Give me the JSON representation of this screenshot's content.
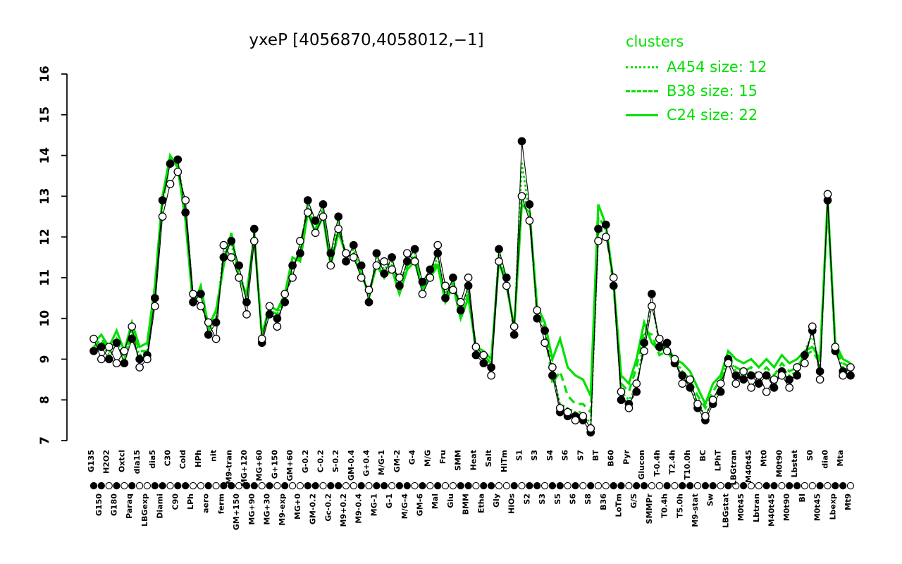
{
  "title": "yxeP [4056870,4058012,−1]",
  "colors": {
    "cluster_green": "#00e000",
    "point_fill": "#000000",
    "point_open": "#ffffff"
  },
  "legend": {
    "title": "clusters",
    "entries": [
      {
        "label": "A454 size: 12",
        "style": "dotted"
      },
      {
        "label": "B38 size: 15",
        "style": "dashed"
      },
      {
        "label": "C24 size: 22",
        "style": "solid"
      }
    ]
  },
  "chart_data": {
    "type": "line",
    "title": "yxeP [4056870,4058012,−1]",
    "xlabel": "",
    "ylabel": "",
    "ylim": [
      7,
      16
    ],
    "yticks": [
      7,
      8,
      9,
      10,
      11,
      12,
      13,
      14,
      15,
      16
    ],
    "grid": false,
    "legend_position": "top-right",
    "categories": [
      "G135",
      "G150",
      "H2O2",
      "G180",
      "Oxtcl",
      "Paraq",
      "dia15",
      "LBGexp",
      "dia5",
      "Diami",
      "C30",
      "C90",
      "Cold",
      "LPh",
      "HPh",
      "aero",
      "nit",
      "ferm",
      "M9-tran",
      "GM+150",
      "MG+120",
      "MG+90",
      "MG+60",
      "MG+30",
      "G+150",
      "M9-exp",
      "GM+60",
      "MG+0",
      "G-0.2",
      "GM-0.2",
      "C-0.2",
      "Gc-0.2",
      "S-0.2",
      "M9+0.2",
      "GM-0.4",
      "M9-0.4",
      "G+0.4",
      "MG-1",
      "M/G-1",
      "G-1",
      "GM-2",
      "M/G-4",
      "G-4",
      "GM-6",
      "M/G",
      "Mal",
      "Fru",
      "Glu",
      "SMM",
      "BMM",
      "Heat",
      "Etha",
      "Salt",
      "Gly",
      "HiTm",
      "HiOs",
      "S1",
      "S2",
      "S3",
      "S3",
      "S4",
      "S5",
      "S6",
      "S6",
      "S7",
      "S8",
      "BT",
      "B36",
      "B60",
      "LoTm",
      "Pyr",
      "G/S",
      "Glucon",
      "SMMPr",
      "T-0.4h",
      "T0.4h",
      "T2.4h",
      "T5.0h",
      "T10.0h",
      "M9-stat",
      "BC",
      "Sw",
      "LPhT",
      "LBGstat",
      "LBGtran",
      "M0t45",
      "M40t45",
      "Lbtran",
      "Mt0",
      "M40t45",
      "M0t90",
      "M0t90",
      "Lbstat",
      "BI",
      "S0",
      "M0t45",
      "dia0",
      "Lbexp",
      "Mta",
      "Mt9"
    ],
    "strip_filled": [
      1,
      1,
      0,
      1,
      0,
      1,
      0,
      0,
      1,
      1,
      0,
      1,
      1,
      0,
      0,
      1,
      0,
      1,
      1,
      0,
      1,
      1,
      0,
      1,
      0,
      1,
      0,
      0,
      1,
      1,
      0,
      1,
      1,
      0,
      0,
      1,
      0,
      1,
      1,
      0,
      1,
      1,
      0,
      1,
      0,
      1,
      0,
      0,
      1,
      1,
      0,
      1,
      1,
      0,
      0,
      1,
      0,
      1,
      1,
      0,
      1,
      1,
      0,
      1,
      0,
      1,
      0,
      0,
      1,
      1,
      0,
      1,
      1,
      0,
      0,
      1,
      0,
      1,
      1,
      0,
      1,
      1,
      0,
      1,
      0,
      1,
      0,
      0,
      1,
      1,
      0,
      1,
      1,
      0,
      0,
      1,
      0,
      1,
      1,
      0
    ],
    "series": [
      {
        "name": "probe-filled",
        "marker": "filled-circle",
        "color": "#000000",
        "values": [
          9.2,
          9.3,
          9.0,
          9.4,
          8.9,
          9.5,
          9.0,
          9.1,
          10.5,
          12.9,
          13.8,
          13.9,
          12.6,
          10.4,
          10.6,
          9.6,
          9.9,
          11.5,
          11.9,
          11.3,
          10.4,
          12.2,
          9.4,
          10.1,
          10.0,
          10.4,
          11.3,
          11.6,
          12.9,
          12.4,
          12.8,
          11.6,
          12.5,
          11.4,
          11.8,
          11.3,
          10.4,
          11.6,
          11.1,
          11.5,
          10.8,
          11.4,
          11.7,
          10.9,
          11.2,
          11.6,
          10.5,
          11.0,
          10.2,
          10.8,
          9.1,
          8.9,
          8.8,
          11.7,
          11.0,
          9.6,
          14.35,
          12.8,
          10.0,
          9.7,
          8.6,
          7.7,
          7.6,
          7.6,
          7.5,
          7.2,
          12.2,
          12.3,
          10.8,
          8.0,
          7.9,
          8.2,
          9.4,
          10.6,
          9.3,
          9.4,
          8.9,
          8.6,
          8.3,
          7.8,
          7.5,
          7.9,
          8.2,
          9.0,
          8.6,
          8.5,
          8.6,
          8.4,
          8.6,
          8.3,
          8.7,
          8.5,
          8.6,
          9.1,
          9.7,
          8.7,
          12.9,
          9.2,
          8.7,
          8.6
        ]
      },
      {
        "name": "probe-open",
        "marker": "open-circle",
        "color": "#000000",
        "values": [
          9.5,
          9.0,
          9.3,
          8.9,
          9.2,
          9.8,
          8.8,
          9.0,
          10.3,
          12.5,
          13.3,
          13.6,
          12.9,
          10.6,
          10.3,
          9.9,
          9.5,
          11.8,
          11.5,
          11.0,
          10.1,
          11.9,
          9.5,
          10.3,
          9.8,
          10.6,
          11.0,
          11.9,
          12.6,
          12.1,
          12.5,
          11.3,
          12.2,
          11.6,
          11.5,
          11.0,
          10.7,
          11.3,
          11.4,
          11.2,
          11.0,
          11.6,
          11.4,
          10.6,
          11.0,
          11.8,
          10.8,
          10.7,
          10.4,
          11.0,
          9.3,
          9.1,
          8.6,
          11.4,
          10.8,
          9.8,
          13.0,
          12.4,
          10.2,
          9.4,
          8.8,
          7.8,
          7.7,
          7.5,
          7.6,
          7.3,
          11.9,
          12.0,
          11.0,
          8.2,
          7.8,
          8.4,
          9.2,
          10.3,
          9.5,
          9.2,
          9.0,
          8.4,
          8.5,
          7.9,
          7.6,
          8.0,
          8.4,
          8.9,
          8.4,
          8.7,
          8.3,
          8.6,
          8.2,
          8.5,
          8.6,
          8.3,
          8.8,
          8.9,
          9.8,
          8.5,
          13.05,
          9.3,
          8.6,
          8.8
        ]
      },
      {
        "name": "A454",
        "style": "dotted",
        "color": "#00e000",
        "size": 12,
        "values": [
          9.3,
          9.4,
          9.1,
          9.5,
          9.0,
          9.6,
          9.1,
          9.2,
          10.6,
          12.9,
          13.9,
          13.8,
          12.7,
          10.5,
          10.7,
          9.7,
          10.0,
          11.6,
          11.8,
          11.2,
          10.5,
          12.1,
          9.6,
          10.2,
          10.1,
          10.5,
          11.2,
          11.7,
          12.8,
          12.3,
          12.7,
          11.5,
          12.4,
          11.5,
          11.7,
          11.2,
          10.5,
          11.5,
          11.2,
          11.4,
          10.9,
          11.3,
          11.6,
          10.8,
          11.1,
          11.5,
          10.6,
          10.9,
          10.3,
          10.7,
          9.2,
          9.0,
          8.9,
          11.6,
          10.9,
          9.7,
          13.8,
          12.6,
          10.1,
          9.8,
          8.7,
          7.9,
          7.8,
          7.7,
          7.7,
          7.4,
          12.1,
          12.2,
          10.9,
          8.2,
          8.0,
          8.3,
          9.5,
          10.4,
          9.4,
          9.3,
          9.0,
          8.7,
          8.4,
          7.9,
          7.6,
          8.0,
          8.3,
          9.1,
          8.7,
          8.6,
          8.7,
          8.5,
          8.7,
          8.4,
          8.8,
          8.6,
          8.7,
          9.2,
          9.6,
          8.8,
          12.9,
          9.3,
          8.8,
          8.7
        ]
      },
      {
        "name": "B38",
        "style": "dashed",
        "color": "#00e000",
        "size": 15,
        "values": [
          9.3,
          9.5,
          9.2,
          9.5,
          9.0,
          9.7,
          9.2,
          9.2,
          10.6,
          12.8,
          13.9,
          13.8,
          12.5,
          10.4,
          10.6,
          9.7,
          10.0,
          11.4,
          12.0,
          11.1,
          10.5,
          12.1,
          9.5,
          10.2,
          10.1,
          10.5,
          11.4,
          11.5,
          12.7,
          12.2,
          12.6,
          11.4,
          12.2,
          11.5,
          11.6,
          11.2,
          10.5,
          11.4,
          11.0,
          11.3,
          10.7,
          11.3,
          11.5,
          10.8,
          11.1,
          11.4,
          10.5,
          10.9,
          10.1,
          10.6,
          9.2,
          9.1,
          8.9,
          11.5,
          10.9,
          9.7,
          13.0,
          12.7,
          10.1,
          9.8,
          8.4,
          8.7,
          8.1,
          7.9,
          7.9,
          7.7,
          12.5,
          12.2,
          10.8,
          8.4,
          8.2,
          8.8,
          9.7,
          9.6,
          9.1,
          9.2,
          8.9,
          8.7,
          8.5,
          8.1,
          7.8,
          8.2,
          8.5,
          9.1,
          8.8,
          8.7,
          8.8,
          8.6,
          8.8,
          8.6,
          8.9,
          8.7,
          8.8,
          9.1,
          9.2,
          8.9,
          12.8,
          9.3,
          8.9,
          8.8
        ]
      },
      {
        "name": "C24",
        "style": "solid",
        "color": "#00e000",
        "size": 22,
        "values": [
          9.4,
          9.6,
          9.3,
          9.7,
          9.2,
          9.9,
          9.3,
          9.4,
          10.8,
          13.0,
          14.0,
          13.7,
          12.4,
          10.3,
          10.8,
          9.8,
          10.2,
          11.3,
          12.1,
          11.0,
          10.6,
          12.0,
          9.6,
          10.3,
          10.2,
          10.6,
          11.5,
          11.4,
          12.6,
          12.1,
          12.5,
          11.3,
          12.1,
          11.6,
          11.5,
          11.1,
          10.6,
          11.3,
          11.0,
          11.2,
          10.6,
          11.2,
          11.4,
          10.7,
          11.0,
          11.3,
          10.4,
          10.8,
          10.0,
          10.5,
          9.3,
          9.2,
          9.0,
          11.4,
          10.8,
          9.8,
          12.8,
          12.6,
          10.3,
          9.9,
          9.0,
          9.5,
          8.8,
          8.6,
          8.5,
          8.1,
          12.8,
          12.3,
          10.9,
          8.6,
          8.4,
          9.0,
          9.9,
          9.4,
          9.2,
          9.3,
          9.0,
          8.9,
          8.7,
          8.3,
          7.9,
          8.4,
          8.6,
          9.2,
          9.0,
          8.9,
          9.0,
          8.8,
          9.0,
          8.8,
          9.1,
          8.9,
          9.0,
          9.2,
          9.3,
          9.0,
          12.9,
          9.4,
          9.0,
          8.9
        ]
      }
    ]
  }
}
